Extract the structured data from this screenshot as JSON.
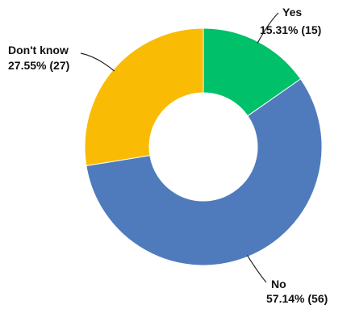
{
  "chart_data": {
    "type": "pie",
    "variant": "donut",
    "categories": [
      "Yes",
      "No",
      "Don't know"
    ],
    "values": [
      15,
      56,
      27
    ],
    "percent_labels": [
      "15.31% (15)",
      "57.14% (56)",
      "27.55% (27)"
    ],
    "colors": [
      "#00c06a",
      "#4f7bbd",
      "#f9bb04"
    ],
    "legend": "none",
    "title": ""
  }
}
